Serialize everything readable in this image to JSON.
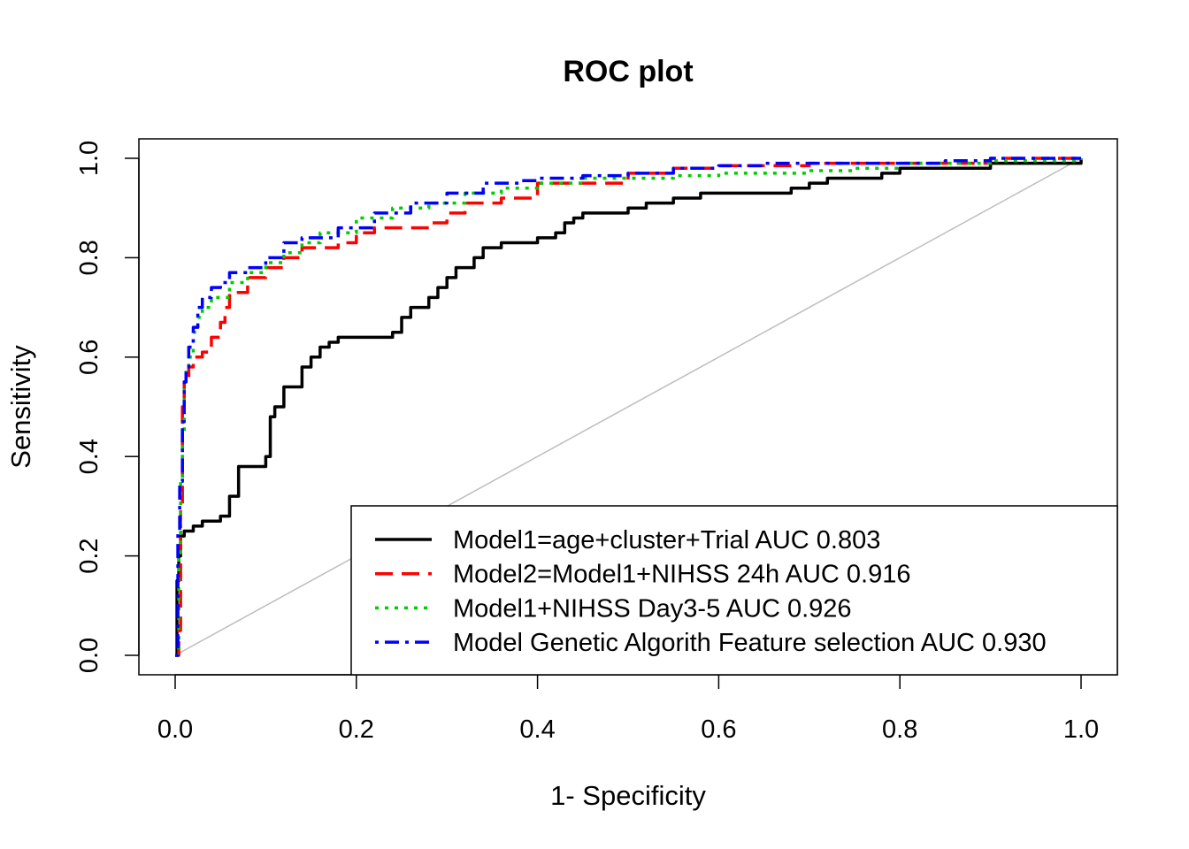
{
  "chart_data": {
    "type": "line",
    "title": "ROC plot",
    "xlabel": "1- Specificity",
    "ylabel": "Sensitivity",
    "xlim": [
      0,
      1
    ],
    "ylim": [
      0,
      1
    ],
    "x_ticks": [
      "0.0",
      "0.2",
      "0.4",
      "0.6",
      "0.8",
      "1.0"
    ],
    "y_ticks": [
      "0.0",
      "0.2",
      "0.4",
      "0.6",
      "0.8",
      "1.0"
    ],
    "grid": false,
    "legend_position": "bottom-right",
    "reference_line": {
      "x": [
        0,
        1
      ],
      "y": [
        0,
        1
      ],
      "color": "#bebebe"
    },
    "series": [
      {
        "name": "Model1=age+cluster+Trial AUC 0.803",
        "color": "#000000",
        "dash": "solid",
        "x": [
          0,
          0.002,
          0.004,
          0.006,
          0.01,
          0.02,
          0.03,
          0.05,
          0.06,
          0.07,
          0.08,
          0.1,
          0.105,
          0.11,
          0.12,
          0.14,
          0.15,
          0.16,
          0.17,
          0.18,
          0.2,
          0.22,
          0.24,
          0.25,
          0.26,
          0.28,
          0.29,
          0.3,
          0.31,
          0.33,
          0.34,
          0.36,
          0.38,
          0.4,
          0.42,
          0.43,
          0.44,
          0.45,
          0.48,
          0.5,
          0.52,
          0.55,
          0.58,
          0.62,
          0.68,
          0.7,
          0.72,
          0.78,
          0.8,
          0.85,
          0.9,
          0.95,
          1.0
        ],
        "y": [
          0,
          0.15,
          0.2,
          0.24,
          0.25,
          0.26,
          0.27,
          0.28,
          0.32,
          0.38,
          0.38,
          0.4,
          0.48,
          0.5,
          0.54,
          0.58,
          0.6,
          0.62,
          0.63,
          0.64,
          0.64,
          0.64,
          0.65,
          0.68,
          0.7,
          0.72,
          0.74,
          0.76,
          0.78,
          0.8,
          0.82,
          0.83,
          0.83,
          0.84,
          0.85,
          0.87,
          0.88,
          0.89,
          0.89,
          0.9,
          0.91,
          0.92,
          0.93,
          0.93,
          0.94,
          0.95,
          0.96,
          0.97,
          0.98,
          0.98,
          0.99,
          0.99,
          1.0
        ]
      },
      {
        "name": "Model2=Model1+NIHSS 24h AUC 0.916",
        "color": "#ff0000",
        "dash": "dashed",
        "x": [
          0,
          0.004,
          0.006,
          0.008,
          0.01,
          0.015,
          0.02,
          0.03,
          0.04,
          0.05,
          0.055,
          0.06,
          0.08,
          0.1,
          0.12,
          0.14,
          0.18,
          0.2,
          0.22,
          0.25,
          0.27,
          0.28,
          0.3,
          0.32,
          0.36,
          0.4,
          0.45,
          0.5,
          0.55,
          0.6,
          0.7,
          0.8,
          0.9,
          1.0
        ],
        "y": [
          0,
          0.05,
          0.3,
          0.5,
          0.55,
          0.58,
          0.6,
          0.61,
          0.64,
          0.67,
          0.7,
          0.73,
          0.76,
          0.78,
          0.8,
          0.82,
          0.83,
          0.85,
          0.86,
          0.86,
          0.86,
          0.87,
          0.89,
          0.91,
          0.92,
          0.95,
          0.95,
          0.97,
          0.98,
          0.985,
          0.99,
          0.99,
          1.0,
          1.0
        ]
      },
      {
        "name": "Model1+NIHSS Day3-5 AUC 0.926",
        "color": "#00cd00",
        "dash": "dotted",
        "x": [
          0,
          0.004,
          0.006,
          0.008,
          0.01,
          0.012,
          0.015,
          0.02,
          0.025,
          0.03,
          0.04,
          0.06,
          0.08,
          0.1,
          0.12,
          0.14,
          0.16,
          0.2,
          0.24,
          0.28,
          0.32,
          0.36,
          0.4,
          0.45,
          0.5,
          0.55,
          0.6,
          0.65,
          0.7,
          0.75,
          0.8,
          0.9,
          1.0
        ],
        "y": [
          0,
          0.2,
          0.35,
          0.45,
          0.55,
          0.58,
          0.6,
          0.65,
          0.68,
          0.7,
          0.72,
          0.75,
          0.77,
          0.79,
          0.81,
          0.83,
          0.85,
          0.88,
          0.9,
          0.91,
          0.93,
          0.94,
          0.95,
          0.96,
          0.96,
          0.965,
          0.97,
          0.97,
          0.975,
          0.98,
          0.99,
          0.995,
          1.0
        ]
      },
      {
        "name": "Model Genetic Algorith Feature selection AUC 0.930",
        "color": "#0000ff",
        "dash": "dotdash",
        "x": [
          0,
          0.003,
          0.005,
          0.008,
          0.01,
          0.012,
          0.015,
          0.02,
          0.025,
          0.03,
          0.04,
          0.05,
          0.06,
          0.08,
          0.1,
          0.12,
          0.14,
          0.18,
          0.22,
          0.26,
          0.3,
          0.34,
          0.38,
          0.4,
          0.45,
          0.5,
          0.55,
          0.6,
          0.65,
          0.7,
          0.75,
          0.8,
          0.85,
          0.9,
          1.0
        ],
        "y": [
          0,
          0.25,
          0.35,
          0.47,
          0.55,
          0.58,
          0.62,
          0.66,
          0.7,
          0.72,
          0.74,
          0.75,
          0.77,
          0.78,
          0.8,
          0.83,
          0.84,
          0.86,
          0.89,
          0.91,
          0.93,
          0.95,
          0.955,
          0.96,
          0.965,
          0.97,
          0.98,
          0.985,
          0.99,
          0.99,
          0.99,
          0.99,
          0.995,
          1.0,
          1.0
        ]
      }
    ]
  }
}
